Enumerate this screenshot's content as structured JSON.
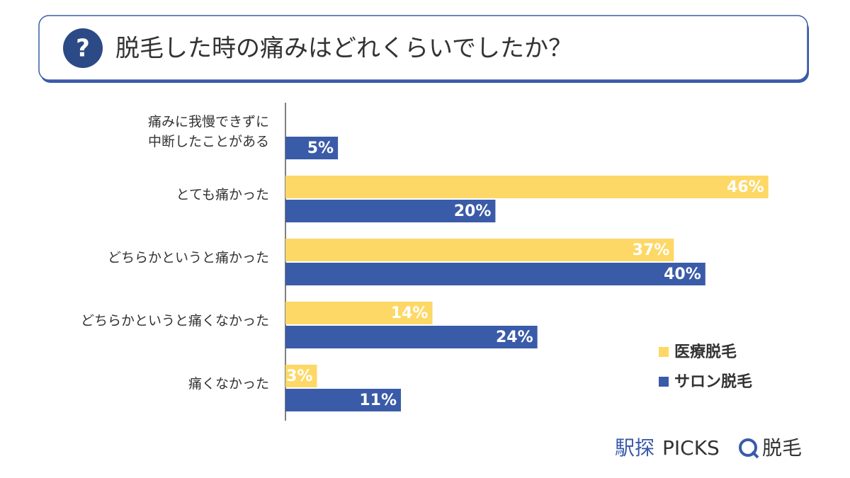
{
  "header_icon": "?",
  "logo": {
    "brand": "駅探",
    "product": "PICKS",
    "topic": "脱毛"
  },
  "chart_data": {
    "type": "hbar",
    "title": "脱毛した時の痛みはどれくらいでしたか？",
    "categories": [
      "痛みに我慢できずに\n中断したことがある",
      "とても痛かった",
      "どちらかというと痛かった",
      "どちらかというと痛くなかった",
      "痛くなかった"
    ],
    "series": [
      {
        "name": "医療脱毛",
        "color": "#fdd866",
        "values": [
          null,
          46,
          37,
          14,
          3
        ],
        "value_labels": [
          null,
          "46%",
          "37%",
          "14%",
          "3%"
        ]
      },
      {
        "name": "サロン脱毛",
        "color": "#3a5ba8",
        "values": [
          5,
          20,
          40,
          24,
          11
        ],
        "value_labels": [
          "5%",
          "20%",
          "40%",
          "24%",
          "11%"
        ]
      }
    ],
    "xlim": [
      0,
      50
    ]
  }
}
